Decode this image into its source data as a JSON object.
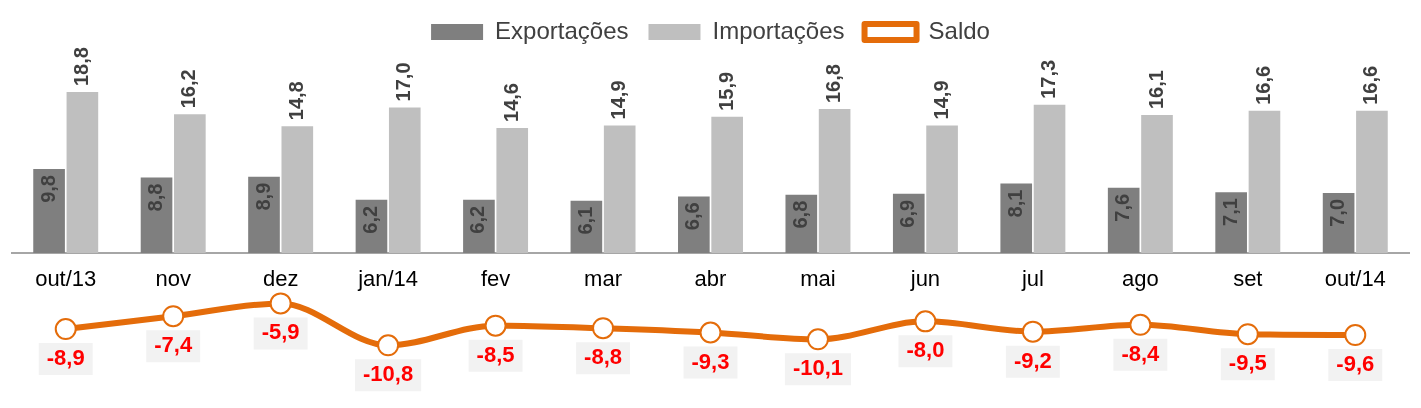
{
  "chart_data": {
    "type": "bar",
    "categories": [
      "out/13",
      "nov",
      "dez",
      "jan/14",
      "fev",
      "mar",
      "abr",
      "mai",
      "jun",
      "jul",
      "ago",
      "set",
      "out/14"
    ],
    "series": [
      {
        "name": "Exportações",
        "color": "#7f7f7f",
        "values": [
          9.8,
          8.8,
          8.9,
          6.2,
          6.2,
          6.1,
          6.6,
          6.8,
          6.9,
          8.1,
          7.6,
          7.1,
          7.0
        ],
        "value_labels": [
          "9,8",
          "8,8",
          "8,9",
          "6,2",
          "6,2",
          "6,1",
          "6,6",
          "6,8",
          "6,9",
          "8,1",
          "7,6",
          "7,1",
          "7,0"
        ]
      },
      {
        "name": "Importações",
        "color": "#bfbfbf",
        "values": [
          18.8,
          16.2,
          14.8,
          17.0,
          14.6,
          14.9,
          15.9,
          16.8,
          14.9,
          17.3,
          16.1,
          16.6,
          16.6
        ],
        "value_labels": [
          "18,8",
          "16,2",
          "14,8",
          "17,0",
          "14,6",
          "14,9",
          "15,9",
          "16,8",
          "14,9",
          "17,3",
          "16,1",
          "16,6",
          "16,6"
        ]
      },
      {
        "name": "Saldo",
        "type": "line",
        "color": "#e46c0a",
        "marker": "circle",
        "values": [
          -8.9,
          -7.4,
          -5.9,
          -10.8,
          -8.5,
          -8.8,
          -9.3,
          -10.1,
          -8.0,
          -9.2,
          -8.4,
          -9.5,
          -9.6
        ],
        "value_labels": [
          "-8,9",
          "-7,4",
          "-5,9",
          "-10,8",
          "-8,5",
          "-8,8",
          "-9,3",
          "-10,1",
          "-8,0",
          "-9,2",
          "-8,4",
          "-9,5",
          "-9,6"
        ]
      }
    ],
    "legend": "top",
    "grid": false
  }
}
